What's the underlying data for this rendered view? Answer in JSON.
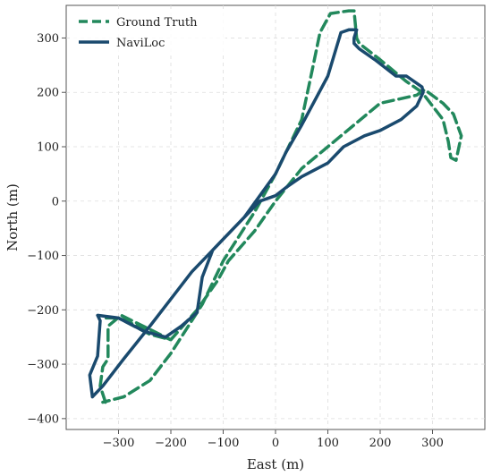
{
  "chart_data": {
    "type": "line",
    "title": "",
    "xlabel": "East (m)",
    "ylabel": "North (m)",
    "xlim": [
      -400,
      400
    ],
    "ylim": [
      -420,
      360
    ],
    "xticks": [
      -300,
      -200,
      -100,
      0,
      100,
      200,
      300
    ],
    "yticks": [
      300,
      200,
      100,
      0,
      -100,
      -200,
      -300,
      -400
    ],
    "xtick_labels": [
      "−300",
      "−200",
      "−100",
      "0",
      "100",
      "200",
      "300"
    ],
    "ytick_labels": [
      "300",
      "200",
      "100",
      "0",
      "−100",
      "−200",
      "−300",
      "−400"
    ],
    "grid": true,
    "legend_position": "top-left",
    "series": [
      {
        "name": "Ground Truth",
        "color": "#22885c",
        "dash": "dashed",
        "x": [
          -325,
          -335,
          -330,
          -320,
          -320,
          -295,
          -200,
          -250,
          -300,
          -325,
          -300,
          -240,
          -200,
          -150,
          -110,
          -90,
          -40,
          0,
          50,
          200,
          270,
          285,
          320,
          340,
          355,
          345,
          335,
          330,
          320,
          280,
          250,
          200,
          160,
          155,
          150,
          140,
          105,
          85,
          70,
          50,
          20,
          0,
          -40,
          -100,
          -140,
          -200,
          -240,
          -290,
          -330
        ],
        "y": [
          -370,
          -340,
          -305,
          -290,
          -230,
          -210,
          -255,
          -235,
          -215,
          -215,
          -215,
          -245,
          -255,
          -200,
          -145,
          -110,
          -55,
          0,
          60,
          180,
          195,
          205,
          180,
          160,
          120,
          75,
          80,
          110,
          150,
          200,
          220,
          260,
          290,
          300,
          350,
          350,
          345,
          310,
          240,
          150,
          90,
          50,
          -20,
          -110,
          -190,
          -280,
          -330,
          -360,
          -370
        ]
      },
      {
        "name": "NaviLoc",
        "color": "#1a4a6e",
        "dash": "solid",
        "x": [
          -350,
          -355,
          -340,
          -335,
          -340,
          -300,
          -250,
          -210,
          -180,
          -150,
          -140,
          -120,
          -90,
          -60,
          -30,
          0,
          20,
          50,
          100,
          130,
          170,
          200,
          240,
          270,
          282,
          280,
          250,
          230,
          190,
          160,
          150,
          150,
          155,
          140,
          125,
          100,
          50,
          20,
          0,
          -30,
          -60,
          -110,
          -160,
          -200,
          -240,
          -290,
          -330,
          -350
        ],
        "y": [
          -360,
          -320,
          -285,
          -220,
          -210,
          -215,
          -240,
          -250,
          -230,
          -205,
          -140,
          -90,
          -60,
          -30,
          0,
          10,
          25,
          45,
          70,
          100,
          120,
          130,
          150,
          175,
          200,
          210,
          230,
          230,
          260,
          280,
          290,
          300,
          315,
          315,
          310,
          230,
          140,
          90,
          50,
          10,
          -30,
          -80,
          -130,
          -180,
          -230,
          -290,
          -340,
          -360
        ]
      }
    ]
  }
}
